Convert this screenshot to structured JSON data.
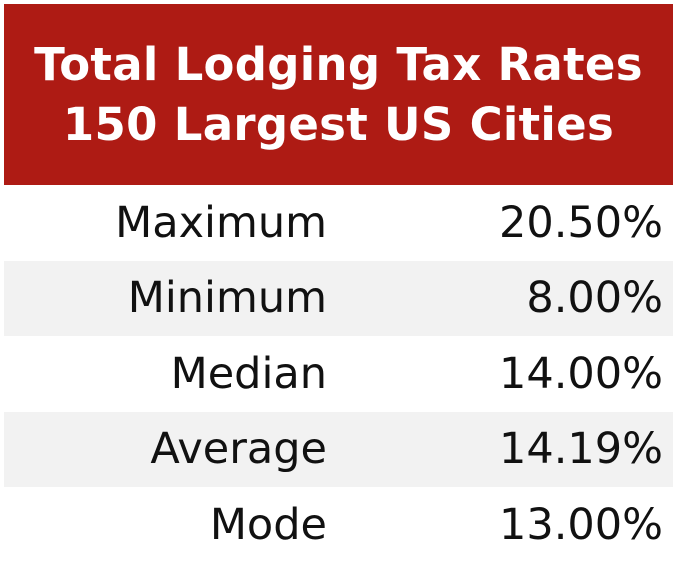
{
  "chart_data": {
    "type": "table",
    "title_lines": [
      "Total Lodging Tax Rates",
      "150 Largest US Cities"
    ],
    "rows": [
      {
        "label": "Maximum",
        "value": "20.50%"
      },
      {
        "label": "Minimum",
        "value": "8.00%"
      },
      {
        "label": "Median",
        "value": "14.00%"
      },
      {
        "label": "Average",
        "value": "14.19%"
      },
      {
        "label": "Mode",
        "value": "13.00%"
      }
    ]
  },
  "colors": {
    "header_background": "#ae1b14",
    "header_text": "#ffffff",
    "shaded_row": "#f2f2f2"
  }
}
